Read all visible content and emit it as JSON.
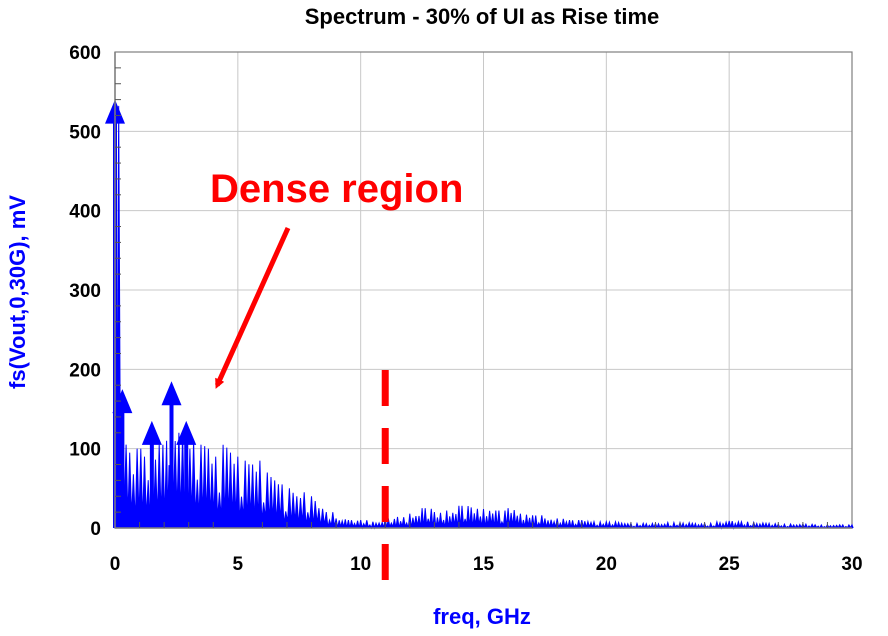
{
  "chart_data": {
    "type": "line",
    "title": "Spectrum - 30% of UI as Rise time",
    "xlabel": "freq, GHz",
    "ylabel": "fs(Vout,0,30G), mV",
    "xlim": [
      0,
      30
    ],
    "ylim": [
      0,
      600
    ],
    "x_ticks": [
      0,
      5,
      10,
      15,
      20,
      25,
      30
    ],
    "y_ticks": [
      0,
      100,
      200,
      300,
      400,
      500,
      600
    ],
    "grid": true,
    "series_color": "#0000ff",
    "series": [
      {
        "x": [
          0,
          0.3,
          0.6,
          0.9,
          1.2,
          1.5,
          1.8,
          2.1,
          2.3,
          2.6,
          2.9,
          3.2,
          3.5,
          3.8,
          4.1,
          4.4,
          4.7,
          5.0,
          5.3,
          5.6,
          5.9,
          6.2,
          6.5,
          6.8,
          7.1,
          7.4,
          7.7,
          8.0,
          8.3,
          8.6,
          9.0,
          9.5,
          10.0,
          10.5,
          11.0,
          11.5,
          12.0,
          12.5,
          13.0,
          13.5,
          14.0,
          14.5,
          15.0,
          15.5,
          16.0,
          16.5,
          17.0,
          17.5,
          18.0,
          18.5,
          19.0,
          19.5,
          20.0,
          20.5,
          21.0,
          21.5,
          22.0,
          22.5,
          23.0,
          23.5,
          24.0,
          24.5,
          25.0,
          25.5,
          26.0,
          26.5,
          27.0,
          27.5,
          28.0,
          28.5,
          29.0,
          29.5,
          30.0
        ],
        "y": [
          535,
          170,
          95,
          100,
          90,
          130,
          105,
          110,
          180,
          120,
          130,
          110,
          105,
          100,
          90,
          105,
          95,
          90,
          85,
          80,
          85,
          70,
          60,
          55,
          50,
          40,
          45,
          40,
          25,
          20,
          12,
          10,
          10,
          8,
          12,
          14,
          18,
          25,
          20,
          22,
          28,
          26,
          24,
          22,
          25,
          18,
          16,
          12,
          12,
          10,
          10,
          8,
          8,
          7,
          6,
          6,
          6,
          7,
          7,
          6,
          6,
          8,
          9,
          8,
          7,
          6,
          5,
          5,
          5,
          4,
          4,
          4,
          4
        ]
      }
    ],
    "annotations": [
      {
        "text": "Dense region",
        "color": "#ff0000",
        "arrow_target_x": 4.0,
        "arrow_target_y": 185
      },
      {
        "text": "",
        "type": "vertical-dashed-marker",
        "x": 11.0,
        "color": "#ff0000"
      }
    ]
  }
}
